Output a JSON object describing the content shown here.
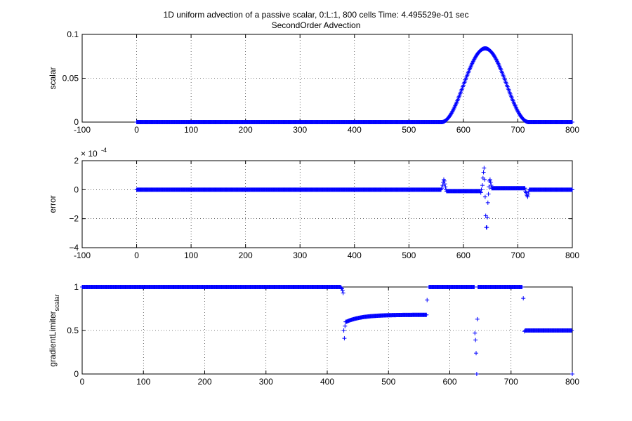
{
  "figure": {
    "title_line1": "1D uniform advection of a passive scalar, 0:L:1, 800 cells Time: 4.495529e-01 sec",
    "title_line2": "SecondOrder Advection",
    "marker_color": "#0000ff"
  },
  "chart_data": [
    {
      "type": "scatter",
      "ylabel": "scalar",
      "xlim": [
        -100,
        800
      ],
      "ylim": [
        0,
        0.1
      ],
      "xticks": [
        -100,
        0,
        100,
        200,
        300,
        400,
        500,
        600,
        700,
        800
      ],
      "yticks": [
        0,
        0.05,
        0.1
      ],
      "xtick_labels": [
        "-100",
        "0",
        "100",
        "200",
        "300",
        "400",
        "500",
        "600",
        "700",
        "800"
      ],
      "ytick_labels": [
        "0",
        "0.05",
        "0.1"
      ],
      "grid": true,
      "series": [
        {
          "marker": "+",
          "color": "#0000ff",
          "segments": [
            {
              "x_start": 0,
              "x_end": 560,
              "step": 1,
              "y": 0
            },
            {
              "x_start": 561,
              "x_end": 719,
              "step": 1,
              "shape": "cosine-hump",
              "center": 640,
              "half_width": 80,
              "peak": 0.084
            },
            {
              "x_start": 720,
              "x_end": 800,
              "step": 1,
              "y": 0
            }
          ]
        }
      ]
    },
    {
      "type": "scatter",
      "ylabel": "error",
      "exponent_label": "× 10",
      "exponent_power": "-4",
      "xlim": [
        -100,
        800
      ],
      "ylim": [
        -4,
        2
      ],
      "xticks": [
        -100,
        0,
        100,
        200,
        300,
        400,
        500,
        600,
        700,
        800
      ],
      "yticks": [
        -4,
        -2,
        0,
        2
      ],
      "xtick_labels": [
        "-100",
        "0",
        "100",
        "200",
        "300",
        "400",
        "500",
        "600",
        "700",
        "800"
      ],
      "ytick_labels": [
        "−4",
        "−2",
        "0",
        "2"
      ],
      "grid": true,
      "series": [
        {
          "marker": "+",
          "color": "#0000ff",
          "segments": [
            {
              "x_start": 0,
              "x_end": 559,
              "step": 1,
              "y": 0
            },
            {
              "x_start": 570,
              "x_end": 630,
              "step": 1,
              "y": -0.1
            },
            {
              "x_start": 652,
              "x_end": 712,
              "step": 1,
              "y": 0.1
            },
            {
              "x_start": 722,
              "x_end": 800,
              "step": 1,
              "y": 0
            }
          ],
          "points": [
            [
              560,
              0.1
            ],
            [
              562,
              0.3
            ],
            [
              563,
              0.5
            ],
            [
              564,
              0.7
            ],
            [
              565,
              0.6
            ],
            [
              566,
              0.4
            ],
            [
              567,
              0.2
            ],
            [
              568,
              0.0
            ],
            [
              569,
              -0.1
            ],
            [
              631,
              -0.1
            ],
            [
              632,
              -0.2
            ],
            [
              633,
              0.0
            ],
            [
              635,
              0.3
            ],
            [
              636,
              0.8
            ],
            [
              637,
              1.2
            ],
            [
              638,
              1.5
            ],
            [
              639,
              0.7
            ],
            [
              640,
              -0.5
            ],
            [
              641,
              -1.8
            ],
            [
              642,
              -2.6
            ],
            [
              643,
              -2.6
            ],
            [
              644,
              -1.9
            ],
            [
              645,
              -0.9
            ],
            [
              646,
              -0.3
            ],
            [
              647,
              0.2
            ],
            [
              648,
              0.6
            ],
            [
              649,
              0.7
            ],
            [
              650,
              0.5
            ],
            [
              651,
              0.3
            ],
            [
              713,
              0.1
            ],
            [
              714,
              -0.1
            ],
            [
              715,
              -0.2
            ],
            [
              716,
              -0.3
            ],
            [
              717,
              -0.4
            ],
            [
              718,
              -0.5
            ],
            [
              719,
              -0.3
            ],
            [
              720,
              -0.1
            ],
            [
              721,
              0.0
            ]
          ]
        }
      ]
    },
    {
      "type": "scatter",
      "ylabel": "gradientLimiter",
      "ylabel_subscript": "scalar",
      "xlim": [
        0,
        800
      ],
      "ylim": [
        0,
        1
      ],
      "xticks": [
        0,
        100,
        200,
        300,
        400,
        500,
        600,
        700,
        800
      ],
      "yticks": [
        0,
        0.5,
        1
      ],
      "xtick_labels": [
        "0",
        "100",
        "200",
        "300",
        "400",
        "500",
        "600",
        "700",
        "800"
      ],
      "ytick_labels": [
        "0",
        "0.5",
        "1"
      ],
      "grid": true,
      "series": [
        {
          "marker": "+",
          "color": "#0000ff",
          "segments": [
            {
              "x_start": 0,
              "x_end": 420,
              "step": 1,
              "y": 1
            },
            {
              "x_start": 432,
              "x_end": 562,
              "step": 1,
              "shape": "saturating",
              "x0": 431,
              "y0": 0.6,
              "y_end": 0.68,
              "rate": 0.04
            },
            {
              "x_start": 566,
              "x_end": 640,
              "step": 1,
              "y": 1
            },
            {
              "x_start": 646,
              "x_end": 718,
              "step": 1,
              "y": 1
            },
            {
              "x_start": 724,
              "x_end": 799,
              "step": 1,
              "y": 0.5
            }
          ],
          "points": [
            [
              421,
              1.0
            ],
            [
              422,
              1.0
            ],
            [
              423,
              0.99
            ],
            [
              424,
              0.98
            ],
            [
              425,
              0.96
            ],
            [
              426,
              0.93
            ],
            [
              427,
              0.5
            ],
            [
              428,
              0.41
            ],
            [
              429,
              0.55
            ],
            [
              430,
              0.6
            ],
            [
              431,
              0.6
            ],
            [
              563,
              0.85
            ],
            [
              641,
              0.47
            ],
            [
              642,
              0.39
            ],
            [
              643,
              0.24
            ],
            [
              644,
              0.0
            ],
            [
              645,
              0.63
            ],
            [
              720,
              0.87
            ],
            [
              722,
              0.49
            ],
            [
              723,
              0.5
            ],
            [
              800,
              0.0
            ]
          ]
        }
      ]
    }
  ]
}
